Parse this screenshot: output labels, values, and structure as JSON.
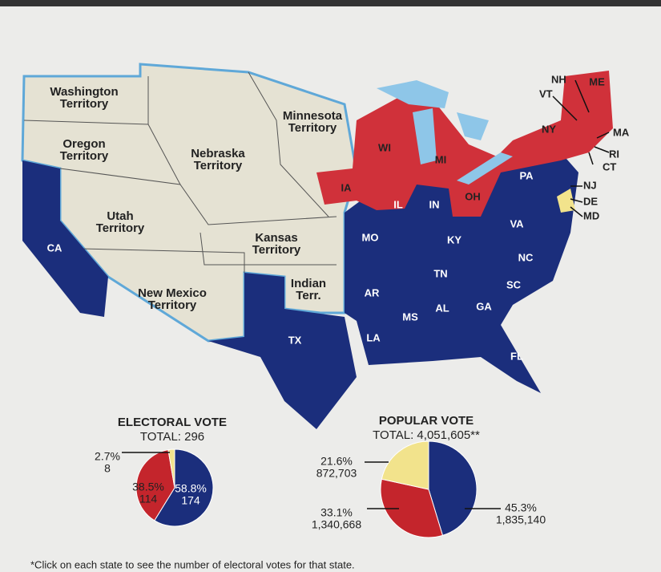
{
  "map": {
    "territories": [
      [
        "Washington",
        "Territory"
      ],
      [
        "Oregon",
        "Territory"
      ],
      [
        "Minnesota",
        "Territory"
      ],
      [
        "Nebraska",
        "Territory"
      ],
      [
        "Utah",
        "Territory"
      ],
      [
        "Kansas",
        "Territory"
      ],
      [
        "New Mexico",
        "Territory"
      ],
      [
        "Indian",
        "Terr."
      ]
    ],
    "states": [
      "CA",
      "TX",
      "IA",
      "WI",
      "MI",
      "IL",
      "IN",
      "OH",
      "PA",
      "NY",
      "NH",
      "VT",
      "ME",
      "MA",
      "RI",
      "CT",
      "NJ",
      "DE",
      "MD",
      "MO",
      "KY",
      "VA",
      "NC",
      "TN",
      "AR",
      "SC",
      "MS",
      "AL",
      "GA",
      "LA",
      "FL"
    ]
  },
  "electoral_vote": {
    "title": "ELECTORAL VOTE",
    "total": "TOTAL: 296",
    "slices": [
      {
        "value": 58.8,
        "value_label": "58.8%",
        "count": 174,
        "color": "#1b2e7c"
      },
      {
        "value": 38.5,
        "value_label": "38.5%",
        "count": 114,
        "color": "#c4252c"
      },
      {
        "value": 2.7,
        "value_label": "2.7%",
        "count": 8,
        "color": "#f2e38c"
      }
    ]
  },
  "popular_vote": {
    "title": "POPULAR VOTE",
    "total": "TOTAL: 4,051,605**",
    "slices": [
      {
        "value": 45.3,
        "value_label": "45.3%",
        "count": 1835140,
        "count_label": "1,835,140",
        "color": "#1b2e7c"
      },
      {
        "value": 33.1,
        "value_label": "33.1%",
        "count": 1340668,
        "count_label": "1,340,668",
        "color": "#c4252c"
      },
      {
        "value": 21.6,
        "value_label": "21.6%",
        "count": 872703,
        "count_label": "872,703",
        "color": "#f2e38c"
      }
    ]
  },
  "footnote": "*Click on each state to see the number of electoral votes for that state."
}
